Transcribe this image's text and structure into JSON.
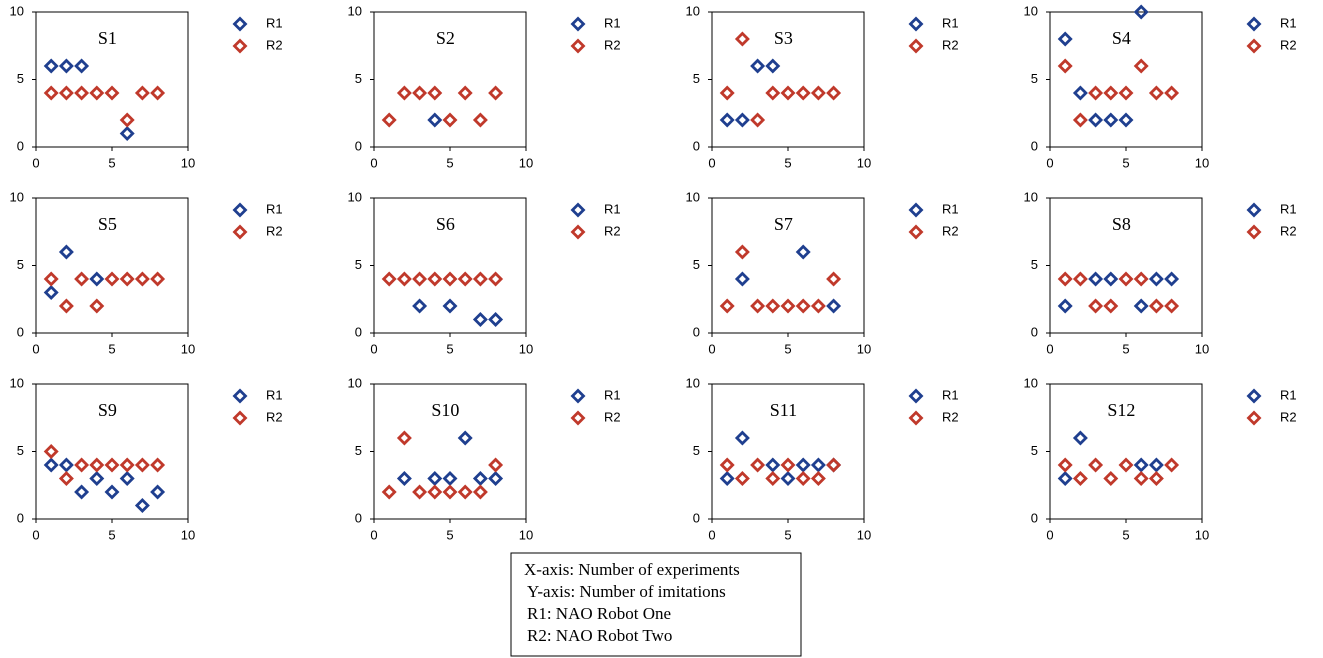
{
  "chart_data": [
    {
      "type": "scatter",
      "title": "S1",
      "xlim": [
        0,
        10
      ],
      "ylim": [
        0,
        10
      ],
      "xticks": [
        0,
        5,
        10
      ],
      "yticks": [
        0,
        5,
        10
      ],
      "legend": "right",
      "series": [
        {
          "name": "R1",
          "color": "#1f3f8f",
          "x": [
            1,
            2,
            3,
            6
          ],
          "values": [
            6,
            6,
            6,
            1
          ]
        },
        {
          "name": "R2",
          "color": "#c0392b",
          "x": [
            1,
            2,
            3,
            4,
            5,
            6,
            7,
            8
          ],
          "values": [
            4,
            4,
            4,
            4,
            4,
            2,
            4,
            4
          ]
        }
      ]
    },
    {
      "type": "scatter",
      "title": "S2",
      "xlim": [
        0,
        10
      ],
      "ylim": [
        0,
        10
      ],
      "xticks": [
        0,
        5,
        10
      ],
      "yticks": [
        0,
        5,
        10
      ],
      "legend": "right",
      "series": [
        {
          "name": "R1",
          "color": "#1f3f8f",
          "x": [
            4
          ],
          "values": [
            2
          ]
        },
        {
          "name": "R2",
          "color": "#c0392b",
          "x": [
            1,
            2,
            3,
            4,
            5,
            6,
            7,
            8
          ],
          "values": [
            2,
            4,
            4,
            4,
            2,
            4,
            2,
            4
          ]
        }
      ]
    },
    {
      "type": "scatter",
      "title": "S3",
      "xlim": [
        0,
        10
      ],
      "ylim": [
        0,
        10
      ],
      "xticks": [
        0,
        5,
        10
      ],
      "yticks": [
        0,
        5,
        10
      ],
      "legend": "right",
      "series": [
        {
          "name": "R1",
          "color": "#1f3f8f",
          "x": [
            1,
            2,
            3,
            4
          ],
          "values": [
            2,
            2,
            6,
            6
          ]
        },
        {
          "name": "R2",
          "color": "#c0392b",
          "x": [
            1,
            2,
            3,
            4,
            5,
            6,
            7,
            8
          ],
          "values": [
            4,
            8,
            2,
            4,
            4,
            4,
            4,
            4
          ]
        }
      ]
    },
    {
      "type": "scatter",
      "title": "S4",
      "xlim": [
        0,
        10
      ],
      "ylim": [
        0,
        10
      ],
      "xticks": [
        0,
        5,
        10
      ],
      "yticks": [
        0,
        5,
        10
      ],
      "legend": "right",
      "series": [
        {
          "name": "R1",
          "color": "#1f3f8f",
          "x": [
            1,
            2,
            3,
            4,
            5,
            6
          ],
          "values": [
            8,
            4,
            2,
            2,
            2,
            10
          ]
        },
        {
          "name": "R2",
          "color": "#c0392b",
          "x": [
            1,
            2,
            3,
            4,
            5,
            6,
            7,
            8
          ],
          "values": [
            6,
            2,
            4,
            4,
            4,
            6,
            4,
            4
          ]
        }
      ]
    },
    {
      "type": "scatter",
      "title": "S5",
      "xlim": [
        0,
        10
      ],
      "ylim": [
        0,
        10
      ],
      "xticks": [
        0,
        5,
        10
      ],
      "yticks": [
        0,
        5,
        10
      ],
      "legend": "right",
      "series": [
        {
          "name": "R1",
          "color": "#1f3f8f",
          "x": [
            1,
            2,
            4
          ],
          "values": [
            3,
            6,
            4
          ]
        },
        {
          "name": "R2",
          "color": "#c0392b",
          "x": [
            1,
            2,
            3,
            4,
            5,
            6,
            7,
            8
          ],
          "values": [
            4,
            2,
            4,
            2,
            4,
            4,
            4,
            4
          ]
        }
      ]
    },
    {
      "type": "scatter",
      "title": "S6",
      "xlim": [
        0,
        10
      ],
      "ylim": [
        0,
        10
      ],
      "xticks": [
        0,
        5,
        10
      ],
      "yticks": [
        0,
        5,
        10
      ],
      "legend": "right",
      "series": [
        {
          "name": "R1",
          "color": "#1f3f8f",
          "x": [
            3,
            5,
            7,
            8
          ],
          "values": [
            2,
            2,
            1,
            1
          ]
        },
        {
          "name": "R2",
          "color": "#c0392b",
          "x": [
            1,
            2,
            3,
            4,
            5,
            6,
            7,
            8
          ],
          "values": [
            4,
            4,
            4,
            4,
            4,
            4,
            4,
            4
          ]
        }
      ]
    },
    {
      "type": "scatter",
      "title": "S7",
      "xlim": [
        0,
        10
      ],
      "ylim": [
        0,
        10
      ],
      "xticks": [
        0,
        5,
        10
      ],
      "yticks": [
        0,
        5,
        10
      ],
      "legend": "right",
      "series": [
        {
          "name": "R1",
          "color": "#1f3f8f",
          "x": [
            2,
            6,
            8
          ],
          "values": [
            4,
            6,
            2
          ]
        },
        {
          "name": "R2",
          "color": "#c0392b",
          "x": [
            1,
            2,
            3,
            4,
            5,
            6,
            7,
            8
          ],
          "values": [
            2,
            6,
            2,
            2,
            2,
            2,
            2,
            4
          ]
        }
      ]
    },
    {
      "type": "scatter",
      "title": "S8",
      "xlim": [
        0,
        10
      ],
      "ylim": [
        0,
        10
      ],
      "xticks": [
        0,
        5,
        10
      ],
      "yticks": [
        0,
        5,
        10
      ],
      "legend": "right",
      "series": [
        {
          "name": "R1",
          "color": "#1f3f8f",
          "x": [
            1,
            3,
            4,
            6,
            7,
            8
          ],
          "values": [
            2,
            4,
            4,
            2,
            4,
            4
          ]
        },
        {
          "name": "R2",
          "color": "#c0392b",
          "x": [
            1,
            2,
            3,
            4,
            5,
            6,
            7,
            8
          ],
          "values": [
            4,
            4,
            2,
            2,
            4,
            4,
            2,
            2
          ]
        }
      ]
    },
    {
      "type": "scatter",
      "title": "S9",
      "xlim": [
        0,
        10
      ],
      "ylim": [
        0,
        10
      ],
      "xticks": [
        0,
        5,
        10
      ],
      "yticks": [
        0,
        5,
        10
      ],
      "legend": "right",
      "series": [
        {
          "name": "R1",
          "color": "#1f3f8f",
          "x": [
            1,
            2,
            3,
            4,
            5,
            6,
            7,
            8
          ],
          "values": [
            4,
            4,
            2,
            3,
            2,
            3,
            1,
            2
          ]
        },
        {
          "name": "R2",
          "color": "#c0392b",
          "x": [
            1,
            2,
            3,
            4,
            5,
            6,
            7,
            8
          ],
          "values": [
            5,
            3,
            4,
            4,
            4,
            4,
            4,
            4
          ]
        }
      ]
    },
    {
      "type": "scatter",
      "title": "S10",
      "xlim": [
        0,
        10
      ],
      "ylim": [
        0,
        10
      ],
      "xticks": [
        0,
        5,
        10
      ],
      "yticks": [
        0,
        5,
        10
      ],
      "legend": "right",
      "series": [
        {
          "name": "R1",
          "color": "#1f3f8f",
          "x": [
            2,
            4,
            5,
            6,
            7,
            8
          ],
          "values": [
            3,
            3,
            3,
            6,
            3,
            3
          ]
        },
        {
          "name": "R2",
          "color": "#c0392b",
          "x": [
            1,
            2,
            3,
            4,
            5,
            6,
            7,
            8
          ],
          "values": [
            2,
            6,
            2,
            2,
            2,
            2,
            2,
            4
          ]
        }
      ]
    },
    {
      "type": "scatter",
      "title": "S11",
      "xlim": [
        0,
        10
      ],
      "ylim": [
        0,
        10
      ],
      "xticks": [
        0,
        5,
        10
      ],
      "yticks": [
        0,
        5,
        10
      ],
      "legend": "right",
      "series": [
        {
          "name": "R1",
          "color": "#1f3f8f",
          "x": [
            1,
            2,
            4,
            5,
            6,
            7,
            8
          ],
          "values": [
            3,
            6,
            4,
            3,
            4,
            4,
            4
          ]
        },
        {
          "name": "R2",
          "color": "#c0392b",
          "x": [
            1,
            2,
            3,
            4,
            5,
            6,
            7,
            8
          ],
          "values": [
            4,
            3,
            4,
            3,
            4,
            3,
            3,
            4
          ]
        }
      ]
    },
    {
      "type": "scatter",
      "title": "S12",
      "xlim": [
        0,
        10
      ],
      "ylim": [
        0,
        10
      ],
      "xticks": [
        0,
        5,
        10
      ],
      "yticks": [
        0,
        5,
        10
      ],
      "legend": "right",
      "series": [
        {
          "name": "R1",
          "color": "#1f3f8f",
          "x": [
            1,
            2,
            6,
            7
          ],
          "values": [
            3,
            6,
            4,
            4
          ]
        },
        {
          "name": "R2",
          "color": "#c0392b",
          "x": [
            1,
            2,
            3,
            4,
            5,
            6,
            7,
            8
          ],
          "values": [
            4,
            3,
            4,
            3,
            4,
            3,
            3,
            4
          ]
        }
      ]
    }
  ],
  "key_box": [
    "X-axis: Number of experiments",
    "Y-axis: Number of imitations",
    "R1: NAO Robot One",
    "R2: NAO Robot Two"
  ]
}
